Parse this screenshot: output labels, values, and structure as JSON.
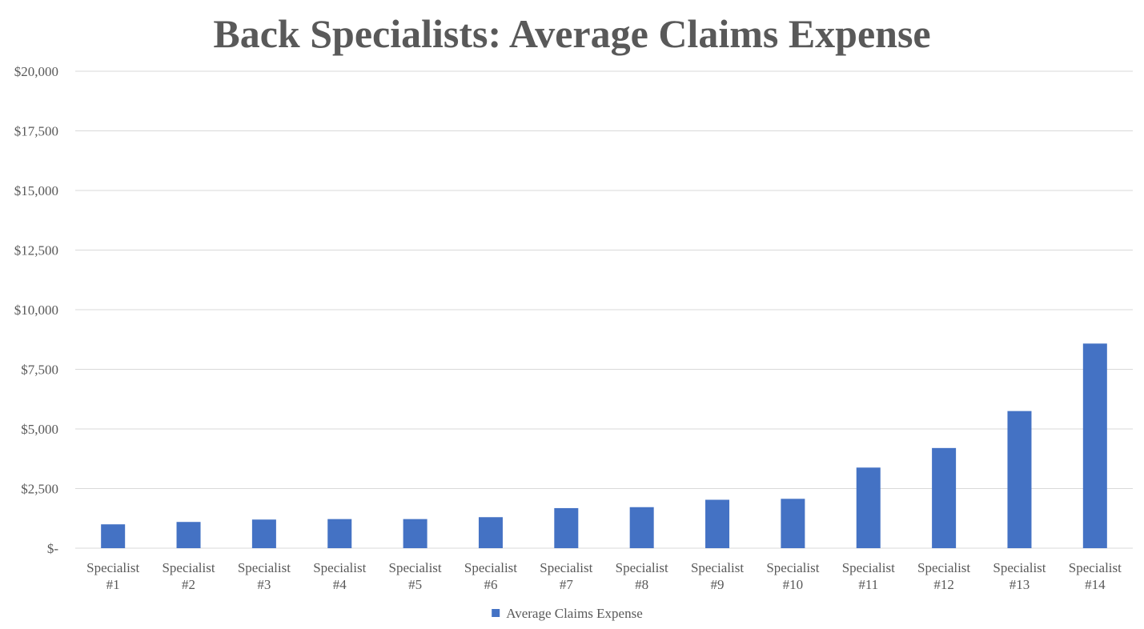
{
  "chart_data": {
    "type": "bar",
    "title": "Back Specialists: Average Claims Expense",
    "xlabel": "",
    "ylabel": "",
    "ylim": [
      0,
      20000
    ],
    "yticks": [
      0,
      2500,
      5000,
      7500,
      10000,
      12500,
      15000,
      17500,
      20000
    ],
    "ytick_labels": [
      "$-",
      "$2,500",
      "$5,000",
      "$7,500",
      "$10,000",
      "$12,500",
      "$15,000",
      "$17,500",
      "$20,000"
    ],
    "categories": [
      [
        "Specialist",
        "#1"
      ],
      [
        "Specialist",
        "#2"
      ],
      [
        "Specialist",
        "#3"
      ],
      [
        "Specialist",
        "#4"
      ],
      [
        "Specialist",
        "#5"
      ],
      [
        "Specialist",
        "#6"
      ],
      [
        "Specialist",
        "#7"
      ],
      [
        "Specialist",
        "#8"
      ],
      [
        "Specialist",
        "#9"
      ],
      [
        "Specialist",
        "#10"
      ],
      [
        "Specialist",
        "#11"
      ],
      [
        "Specialist",
        "#12"
      ],
      [
        "Specialist",
        "#13"
      ],
      [
        "Specialist",
        "#14"
      ]
    ],
    "series": [
      {
        "name": "Average Claims Expense",
        "color": "#4472C4",
        "values": [
          1000,
          1100,
          1200,
          1220,
          1220,
          1300,
          1680,
          1720,
          2030,
          2070,
          3380,
          4200,
          5750,
          8580
        ]
      }
    ],
    "grid": true,
    "legend_position": "bottom"
  }
}
